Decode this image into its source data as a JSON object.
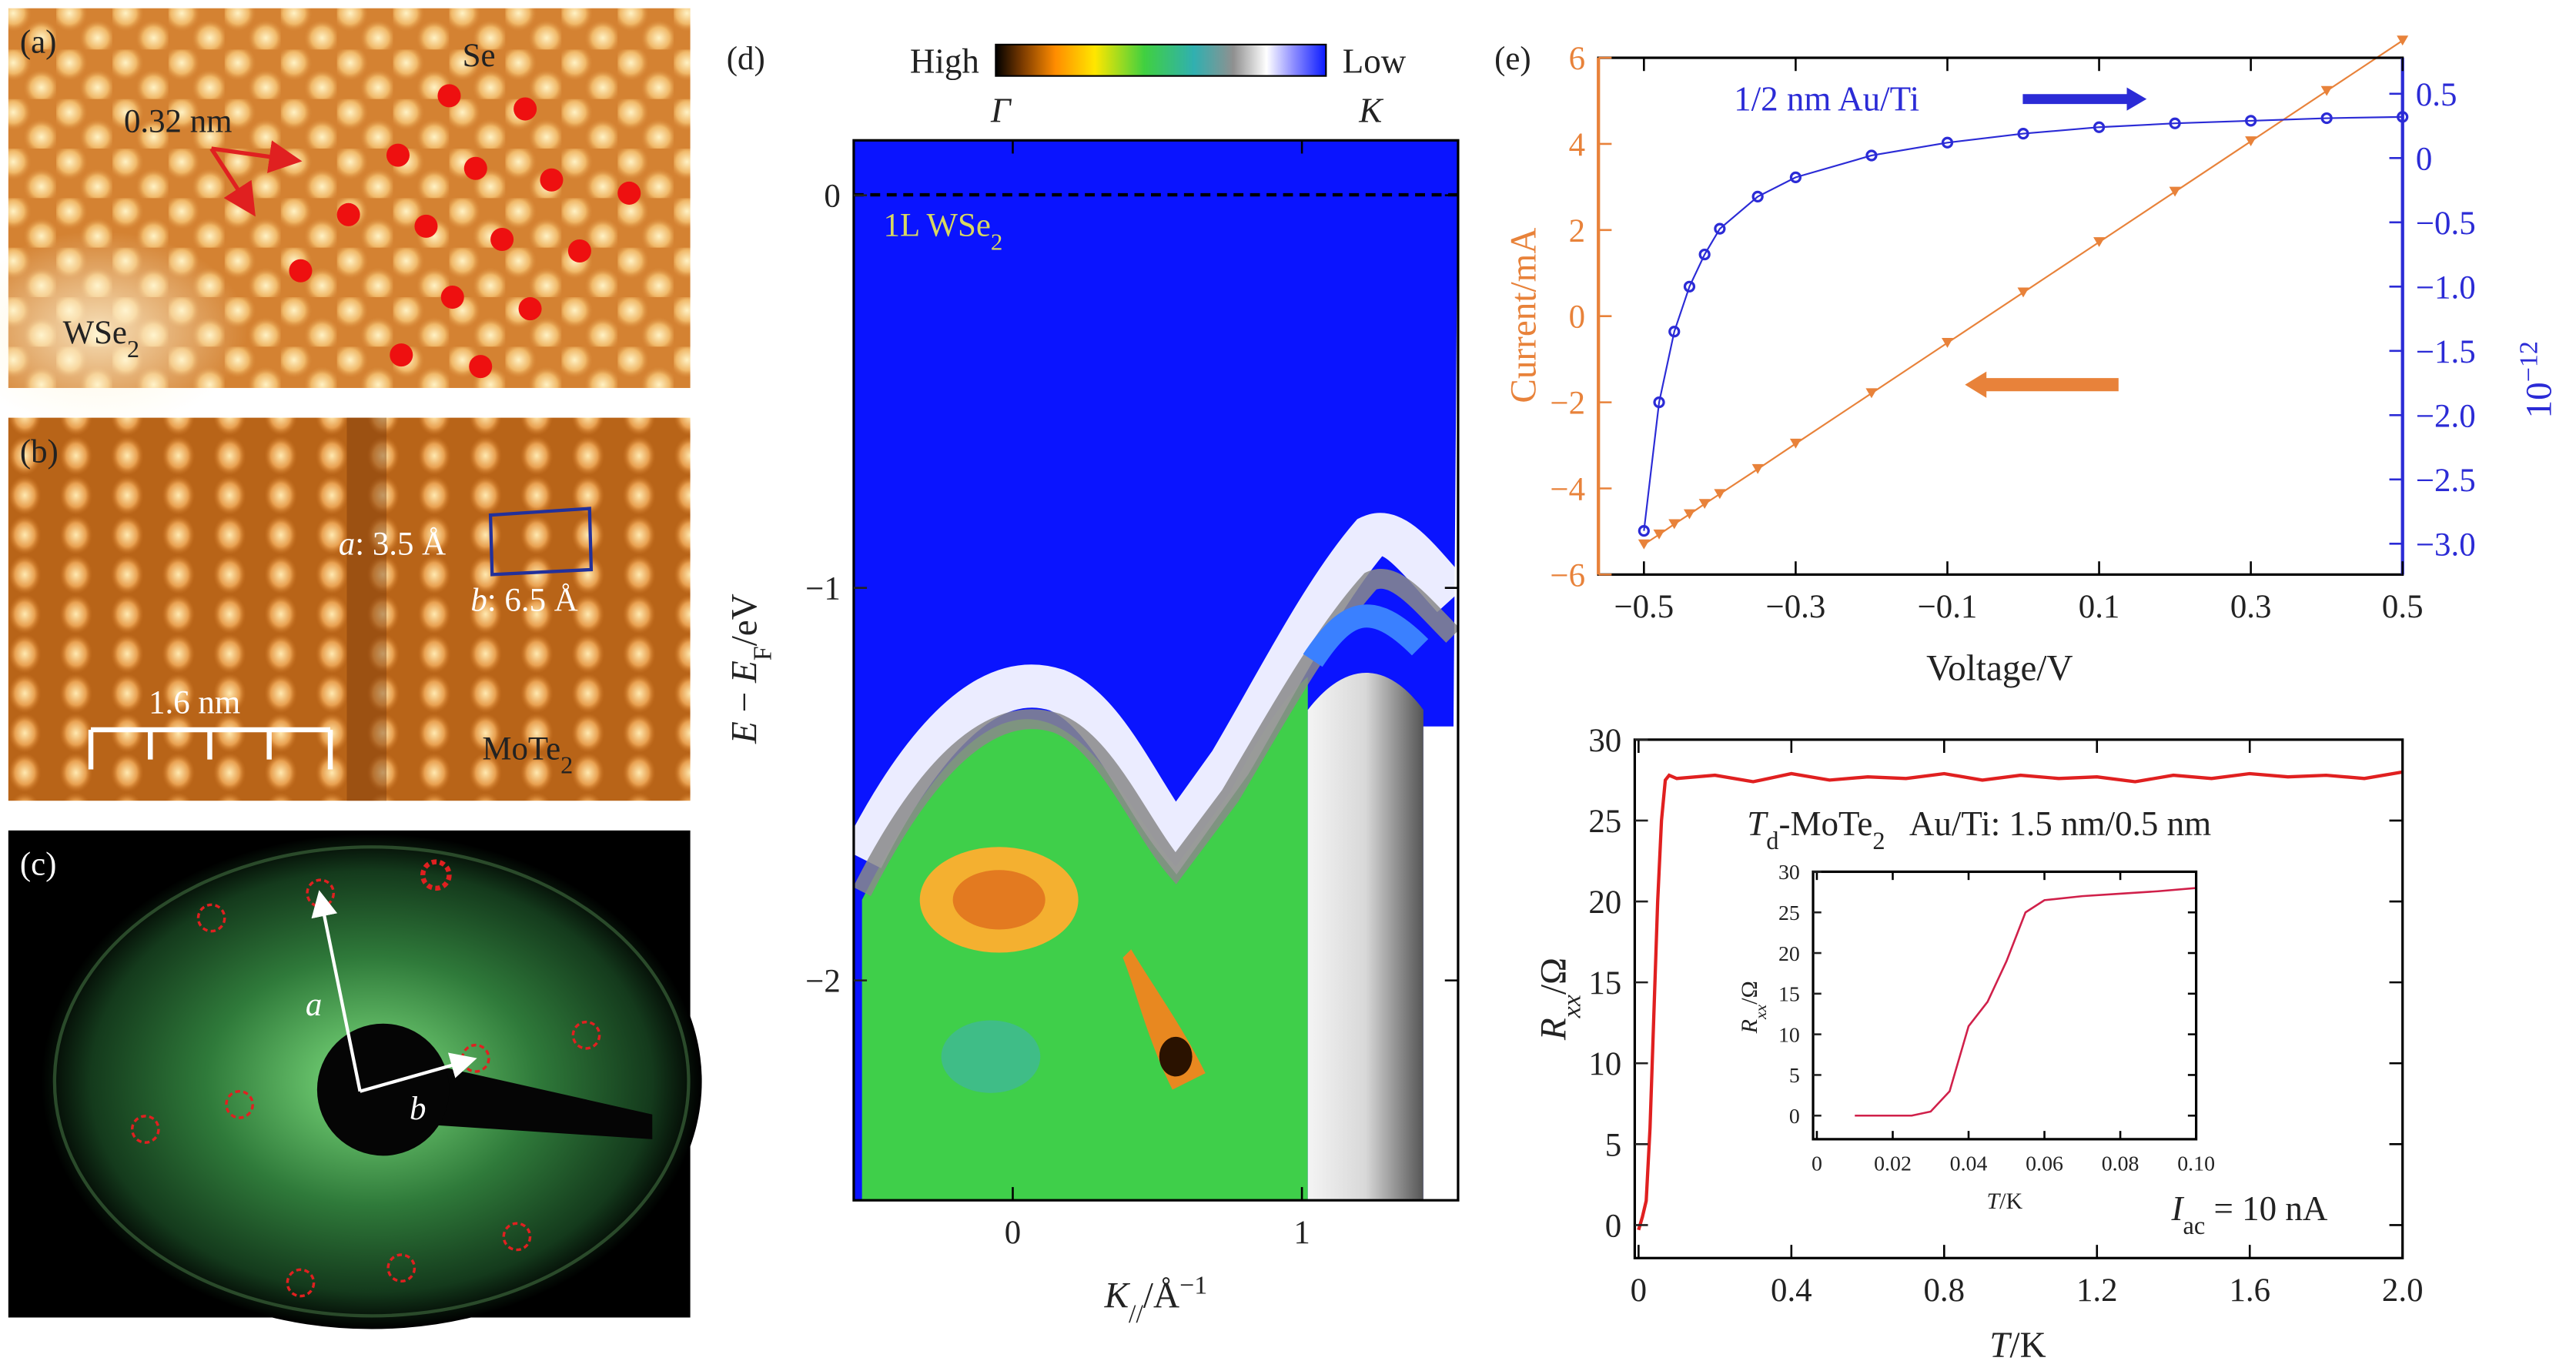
{
  "panels": {
    "a": {
      "label": "(a)",
      "atom": "Se",
      "spacing": "0.32 nm",
      "material": [
        "WSe",
        "2"
      ]
    },
    "b": {
      "label": "(b)",
      "lattice_a": [
        "a",
        ": 3.5 Å"
      ],
      "lattice_b": [
        "b",
        ": 6.5 Å"
      ],
      "scale": "1.6 nm",
      "material": [
        "MoTe",
        "2"
      ]
    },
    "c": {
      "label": "(c)",
      "vector_a": "a",
      "vector_b": "b"
    },
    "d": {
      "label": "(d)"
    },
    "e": {
      "label": "(e)"
    }
  },
  "chart_data": [
    {
      "type": "line",
      "xlabel": "Voltage/V",
      "ylabel": "Current/mA",
      "y2label": [
        "10",
        "−12"
      ],
      "annotation": "1/2 nm Au/Ti",
      "x": [
        -0.5,
        -0.48,
        -0.46,
        -0.44,
        -0.42,
        -0.4,
        -0.35,
        -0.3,
        -0.2,
        -0.1,
        0,
        0.1,
        0.2,
        0.3,
        0.4,
        0.5
      ],
      "series": [
        {
          "color": "#e8823a",
          "values": [
            -5.3,
            -5.07,
            -4.83,
            -4.6,
            -4.36,
            -4.13,
            -3.55,
            -2.96,
            -1.79,
            -0.62,
            0.55,
            1.72,
            2.89,
            4.06,
            5.23,
            6.4
          ]
        },
        {
          "color": "#2b2bd6",
          "axis": "y2",
          "values": [
            -2.9,
            -1.9,
            -1.35,
            -1.0,
            -0.75,
            -0.55,
            -0.3,
            -0.15,
            0.02,
            0.12,
            0.19,
            0.24,
            0.27,
            0.29,
            0.31,
            0.32
          ]
        }
      ],
      "xlim": [
        -0.56,
        0.5
      ],
      "xticks": [
        {
          "value": -0.5,
          "label": "−0.5"
        },
        {
          "value": -0.3,
          "label": "−0.3"
        },
        {
          "value": -0.1,
          "label": "−0.1"
        },
        0.1,
        0.3,
        0.5
      ],
      "ylim": [
        -6,
        6
      ],
      "yticks": [
        {
          "value": -6,
          "label": "−6"
        },
        {
          "value": -4,
          "label": "−4"
        },
        {
          "value": -2,
          "label": "−2"
        },
        0,
        2,
        4,
        6
      ],
      "y2lim": [
        -3.24,
        0.78
      ],
      "y2ticks": [
        0.5,
        0,
        {
          "value": -0.5,
          "label": "−0.5"
        },
        {
          "value": -1,
          "label": "−1.0"
        },
        {
          "value": -1.5,
          "label": "−1.5"
        },
        {
          "value": -2,
          "label": "−2.0"
        },
        {
          "value": -2.5,
          "label": "−2.5"
        },
        {
          "value": -3,
          "label": "−3.0"
        }
      ]
    },
    {
      "type": "line",
      "xlabel": [
        "T",
        "/K"
      ],
      "ylabel": [
        "R",
        "xx",
        "/Ω"
      ],
      "sample": [
        "T",
        "d",
        "-MoTe",
        "2",
        "   Au/Ti: 1.5 nm/0.5 nm"
      ],
      "current": [
        "I",
        "ac",
        " = 10 nA"
      ],
      "x": [
        0,
        0.01,
        0.02,
        0.03,
        0.04,
        0.05,
        0.06,
        0.07,
        0.08,
        0.1,
        0.2,
        0.3,
        0.4,
        0.5,
        0.6,
        0.7,
        0.8,
        0.9,
        1.0,
        1.1,
        1.2,
        1.3,
        1.4,
        1.5,
        1.6,
        1.7,
        1.8,
        1.9,
        2.0
      ],
      "series": [
        {
          "color": "#e02020",
          "values": [
            -0.3,
            0.5,
            1.5,
            6,
            13,
            20,
            25,
            27.5,
            27.8,
            27.6,
            27.8,
            27.4,
            27.9,
            27.5,
            27.7,
            27.6,
            27.9,
            27.5,
            27.8,
            27.6,
            27.7,
            27.4,
            27.8,
            27.6,
            27.9,
            27.7,
            27.8,
            27.6,
            28.0
          ]
        }
      ],
      "xlim": [
        -0.01,
        2.0
      ],
      "xticks": [
        0,
        0.4,
        0.8,
        1.2,
        1.6,
        {
          "value": 2.0,
          "label": "2.0"
        }
      ],
      "ylim": [
        -2.04,
        30
      ],
      "yticks": [
        0,
        5,
        10,
        15,
        20,
        25,
        30
      ]
    },
    {
      "type": "line",
      "xlabel": [
        "T",
        "/K"
      ],
      "ylabel": [
        "R",
        "xx",
        "/Ω"
      ],
      "x": [
        0.01,
        0.02,
        0.025,
        0.03,
        0.035,
        0.04,
        0.045,
        0.05,
        0.055,
        0.06,
        0.07,
        0.08,
        0.09,
        0.1
      ],
      "series": [
        {
          "color": "#d0204a",
          "values": [
            0,
            0,
            0,
            0.5,
            3,
            11,
            14,
            19,
            25,
            26.5,
            27,
            27.3,
            27.6,
            28
          ]
        }
      ],
      "xlim": [
        -0.001,
        0.1
      ],
      "xticks": [
        0,
        0.02,
        0.04,
        0.06,
        0.08,
        {
          "value": 0.1,
          "label": "0.10"
        }
      ],
      "ylim": [
        -2.9,
        30
      ],
      "yticks": [
        0,
        5,
        10,
        15,
        20,
        25,
        30
      ]
    },
    {
      "type": "image",
      "xlabel": [
        "K",
        "//",
        "/Å",
        "−1"
      ],
      "ylabel": [
        "E",
        " − ",
        "E",
        "F",
        "/eV"
      ],
      "colorbar": {
        "high": "High",
        "low": "Low"
      },
      "gamma": "Γ",
      "k": "K",
      "sample": [
        "1L WSe",
        "2"
      ],
      "xlim": [
        -0.55,
        1.54
      ],
      "xticks": [
        0,
        1
      ],
      "ylim": [
        -2.56,
        0.14
      ],
      "yticks": [
        {
          "value": -2,
          "label": "−2"
        },
        {
          "value": -1,
          "label": "−1"
        },
        0
      ]
    }
  ]
}
